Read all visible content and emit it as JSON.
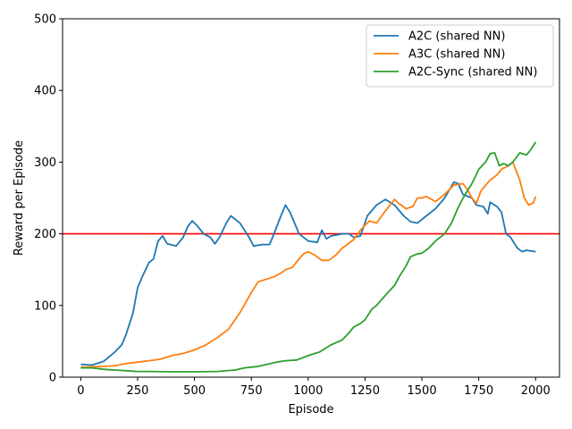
{
  "chart_data": {
    "type": "line",
    "xlabel": "Episode",
    "ylabel": "Reward per Episode",
    "xlim": [
      -80,
      2105
    ],
    "ylim": [
      0,
      500
    ],
    "xticks": [
      0,
      250,
      500,
      750,
      1000,
      1250,
      1500,
      1750,
      2000
    ],
    "yticks": [
      0,
      100,
      200,
      300,
      400,
      500
    ],
    "grid": false,
    "legend_position": "top-right",
    "reference_line": {
      "y": 200,
      "color": "#ff0000"
    },
    "series": [
      {
        "name": "A2C (shared NN)",
        "color": "#1f77b4",
        "points": [
          [
            0,
            18
          ],
          [
            50,
            17
          ],
          [
            100,
            22
          ],
          [
            150,
            35
          ],
          [
            180,
            45
          ],
          [
            200,
            60
          ],
          [
            230,
            90
          ],
          [
            250,
            125
          ],
          [
            270,
            140
          ],
          [
            300,
            160
          ],
          [
            320,
            165
          ],
          [
            340,
            190
          ],
          [
            360,
            197
          ],
          [
            380,
            186
          ],
          [
            420,
            183
          ],
          [
            450,
            195
          ],
          [
            470,
            210
          ],
          [
            490,
            218
          ],
          [
            510,
            212
          ],
          [
            540,
            200
          ],
          [
            570,
            195
          ],
          [
            590,
            186
          ],
          [
            610,
            195
          ],
          [
            640,
            215
          ],
          [
            660,
            225
          ],
          [
            700,
            215
          ],
          [
            740,
            195
          ],
          [
            760,
            183
          ],
          [
            800,
            185
          ],
          [
            830,
            185
          ],
          [
            850,
            200
          ],
          [
            880,
            225
          ],
          [
            900,
            240
          ],
          [
            920,
            230
          ],
          [
            940,
            215
          ],
          [
            960,
            200
          ],
          [
            1000,
            190
          ],
          [
            1040,
            188
          ],
          [
            1060,
            205
          ],
          [
            1080,
            193
          ],
          [
            1100,
            197
          ],
          [
            1150,
            200
          ],
          [
            1180,
            200
          ],
          [
            1200,
            195
          ],
          [
            1230,
            197
          ],
          [
            1260,
            225
          ],
          [
            1300,
            240
          ],
          [
            1340,
            248
          ],
          [
            1380,
            240
          ],
          [
            1420,
            225
          ],
          [
            1450,
            217
          ],
          [
            1480,
            215
          ],
          [
            1520,
            225
          ],
          [
            1560,
            235
          ],
          [
            1600,
            250
          ],
          [
            1640,
            272
          ],
          [
            1660,
            270
          ],
          [
            1680,
            255
          ],
          [
            1720,
            250
          ],
          [
            1740,
            240
          ],
          [
            1770,
            238
          ],
          [
            1790,
            228
          ],
          [
            1800,
            244
          ],
          [
            1830,
            238
          ],
          [
            1850,
            230
          ],
          [
            1870,
            200
          ],
          [
            1890,
            195
          ],
          [
            1920,
            180
          ],
          [
            1940,
            175
          ],
          [
            1960,
            177
          ],
          [
            2000,
            175
          ]
        ]
      },
      {
        "name": "A3C (shared NN)",
        "color": "#ff7f0e",
        "points": [
          [
            0,
            14
          ],
          [
            100,
            15
          ],
          [
            150,
            16
          ],
          [
            200,
            19
          ],
          [
            250,
            21
          ],
          [
            300,
            23
          ],
          [
            350,
            25
          ],
          [
            400,
            30
          ],
          [
            450,
            33
          ],
          [
            500,
            38
          ],
          [
            550,
            45
          ],
          [
            600,
            55
          ],
          [
            650,
            67
          ],
          [
            700,
            90
          ],
          [
            750,
            118
          ],
          [
            780,
            133
          ],
          [
            800,
            135
          ],
          [
            850,
            140
          ],
          [
            880,
            145
          ],
          [
            900,
            150
          ],
          [
            930,
            153
          ],
          [
            960,
            165
          ],
          [
            980,
            172
          ],
          [
            1000,
            175
          ],
          [
            1030,
            170
          ],
          [
            1060,
            163
          ],
          [
            1090,
            163
          ],
          [
            1120,
            170
          ],
          [
            1150,
            180
          ],
          [
            1200,
            192
          ],
          [
            1230,
            205
          ],
          [
            1250,
            212
          ],
          [
            1270,
            218
          ],
          [
            1300,
            215
          ],
          [
            1340,
            232
          ],
          [
            1380,
            248
          ],
          [
            1400,
            242
          ],
          [
            1430,
            235
          ],
          [
            1460,
            238
          ],
          [
            1480,
            250
          ],
          [
            1500,
            250
          ],
          [
            1520,
            252
          ],
          [
            1560,
            245
          ],
          [
            1600,
            255
          ],
          [
            1640,
            268
          ],
          [
            1680,
            270
          ],
          [
            1700,
            262
          ],
          [
            1720,
            250
          ],
          [
            1740,
            243
          ],
          [
            1760,
            260
          ],
          [
            1800,
            275
          ],
          [
            1830,
            282
          ],
          [
            1850,
            290
          ],
          [
            1880,
            295
          ],
          [
            1900,
            300
          ],
          [
            1930,
            275
          ],
          [
            1950,
            250
          ],
          [
            1970,
            240
          ],
          [
            1990,
            243
          ],
          [
            2000,
            252
          ]
        ]
      },
      {
        "name": "A2C-Sync (shared NN)",
        "color": "#2ca02c",
        "points": [
          [
            0,
            13
          ],
          [
            50,
            13
          ],
          [
            100,
            11
          ],
          [
            150,
            10
          ],
          [
            200,
            9
          ],
          [
            250,
            8
          ],
          [
            300,
            8
          ],
          [
            400,
            7.5
          ],
          [
            500,
            7.5
          ],
          [
            600,
            8
          ],
          [
            680,
            10
          ],
          [
            720,
            13
          ],
          [
            750,
            14
          ],
          [
            780,
            15
          ],
          [
            820,
            18
          ],
          [
            860,
            21
          ],
          [
            900,
            23
          ],
          [
            950,
            24
          ],
          [
            1000,
            30
          ],
          [
            1050,
            35
          ],
          [
            1100,
            45
          ],
          [
            1150,
            52
          ],
          [
            1180,
            62
          ],
          [
            1200,
            70
          ],
          [
            1230,
            75
          ],
          [
            1250,
            80
          ],
          [
            1280,
            95
          ],
          [
            1300,
            100
          ],
          [
            1350,
            118
          ],
          [
            1380,
            128
          ],
          [
            1400,
            140
          ],
          [
            1430,
            155
          ],
          [
            1450,
            168
          ],
          [
            1480,
            172
          ],
          [
            1500,
            173
          ],
          [
            1530,
            180
          ],
          [
            1560,
            190
          ],
          [
            1600,
            200
          ],
          [
            1630,
            215
          ],
          [
            1660,
            237
          ],
          [
            1690,
            255
          ],
          [
            1720,
            270
          ],
          [
            1750,
            290
          ],
          [
            1780,
            300
          ],
          [
            1800,
            312
          ],
          [
            1820,
            313
          ],
          [
            1840,
            295
          ],
          [
            1860,
            298
          ],
          [
            1880,
            295
          ],
          [
            1900,
            300
          ],
          [
            1930,
            313
          ],
          [
            1960,
            310
          ],
          [
            1980,
            318
          ],
          [
            2000,
            328
          ]
        ]
      }
    ]
  }
}
